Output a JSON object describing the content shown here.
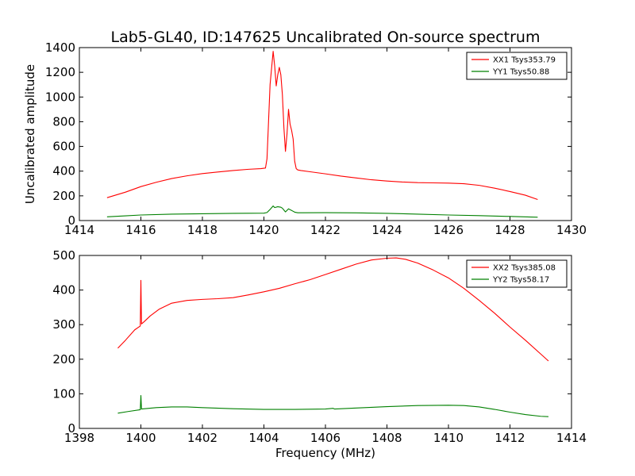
{
  "title": "Lab5-GL40, ID:147625 Uncalibrated On-source spectrum",
  "chart_data": [
    {
      "type": "line",
      "id": "top",
      "title": "Lab5-GL40, ID:147625 Uncalibrated On-source spectrum",
      "xlabel": "",
      "ylabel": "Uncalibrated amplitude",
      "xlim": [
        1414,
        1430
      ],
      "ylim": [
        0,
        1400
      ],
      "xticks": [
        1414,
        1416,
        1418,
        1420,
        1422,
        1424,
        1426,
        1428,
        1430
      ],
      "yticks": [
        0,
        200,
        400,
        600,
        800,
        1000,
        1200,
        1400
      ],
      "legend_position": "top-right",
      "series": [
        {
          "name": "XX1 Tsys353.79",
          "color": "#ff0000",
          "x": [
            1414.9,
            1415.5,
            1416,
            1416.5,
            1417,
            1417.5,
            1418,
            1418.5,
            1419,
            1419.5,
            1419.9,
            1420.05,
            1420.1,
            1420.15,
            1420.2,
            1420.3,
            1420.35,
            1420.4,
            1420.45,
            1420.5,
            1420.55,
            1420.6,
            1420.65,
            1420.7,
            1420.75,
            1420.8,
            1420.85,
            1420.9,
            1420.95,
            1421,
            1421.05,
            1421.1,
            1421.2,
            1421.5,
            1422,
            1422.5,
            1423,
            1423.5,
            1424,
            1424.5,
            1425,
            1425.5,
            1426,
            1426.5,
            1427,
            1427.5,
            1428,
            1428.5,
            1428.9
          ],
          "values": [
            185,
            230,
            275,
            310,
            340,
            362,
            380,
            393,
            405,
            415,
            420,
            425,
            500,
            800,
            1100,
            1370,
            1250,
            1090,
            1180,
            1240,
            1180,
            1020,
            750,
            560,
            700,
            900,
            780,
            730,
            660,
            480,
            420,
            410,
            405,
            395,
            378,
            360,
            345,
            330,
            320,
            312,
            307,
            305,
            303,
            298,
            285,
            262,
            235,
            205,
            170
          ]
        },
        {
          "name": "YY1 Tsys50.88",
          "color": "#008000",
          "x": [
            1414.9,
            1415.5,
            1416,
            1417,
            1418,
            1419,
            1420,
            1420.1,
            1420.2,
            1420.3,
            1420.35,
            1420.45,
            1420.55,
            1420.6,
            1420.7,
            1420.8,
            1420.85,
            1420.95,
            1421,
            1421.1,
            1422,
            1423,
            1424,
            1425,
            1426,
            1427,
            1428,
            1428.9
          ],
          "values": [
            30,
            38,
            45,
            52,
            55,
            58,
            60,
            65,
            90,
            118,
            105,
            112,
            108,
            100,
            70,
            95,
            88,
            75,
            68,
            63,
            64,
            62,
            58,
            52,
            45,
            40,
            33,
            27
          ]
        }
      ]
    },
    {
      "type": "line",
      "id": "bottom",
      "title": "",
      "xlabel": "Frequency (MHz)",
      "ylabel": "",
      "xlim": [
        1398,
        1414
      ],
      "ylim": [
        0,
        500
      ],
      "xticks": [
        1398,
        1400,
        1402,
        1404,
        1406,
        1408,
        1410,
        1412,
        1414
      ],
      "yticks": [
        0,
        100,
        200,
        300,
        400,
        500
      ],
      "legend_position": "top-right",
      "series": [
        {
          "name": "XX2 Tsys385.08",
          "color": "#ff0000",
          "x": [
            1399.25,
            1399.5,
            1399.8,
            1399.98,
            1400,
            1400.02,
            1400.1,
            1400.3,
            1400.6,
            1401,
            1401.5,
            1402,
            1402.5,
            1403,
            1403.5,
            1404,
            1404.5,
            1405,
            1405.5,
            1406,
            1406.5,
            1407,
            1407.5,
            1408,
            1408.3,
            1408.6,
            1409,
            1409.5,
            1410,
            1410.5,
            1411,
            1411.5,
            1412,
            1412.5,
            1413,
            1413.25
          ],
          "values": [
            232,
            255,
            285,
            296,
            428,
            302,
            308,
            325,
            345,
            362,
            370,
            373,
            375,
            378,
            386,
            395,
            405,
            418,
            430,
            445,
            460,
            475,
            487,
            492,
            493,
            489,
            478,
            458,
            435,
            405,
            370,
            333,
            293,
            255,
            215,
            195
          ]
        },
        {
          "name": "YY2 Tsys58.17",
          "color": "#008000",
          "x": [
            1399.25,
            1399.6,
            1399.98,
            1400,
            1400.02,
            1400.5,
            1401,
            1401.5,
            1402,
            1403,
            1404,
            1405,
            1406,
            1406.25,
            1406.3,
            1407,
            1408,
            1409,
            1410,
            1410.5,
            1411,
            1411.5,
            1412,
            1412.5,
            1413,
            1413.25
          ],
          "values": [
            44,
            49,
            54,
            95,
            56,
            60,
            62,
            62,
            60,
            57,
            55,
            55,
            56,
            58,
            56,
            59,
            63,
            66,
            67,
            66,
            62,
            55,
            47,
            40,
            35,
            34
          ]
        }
      ]
    }
  ]
}
